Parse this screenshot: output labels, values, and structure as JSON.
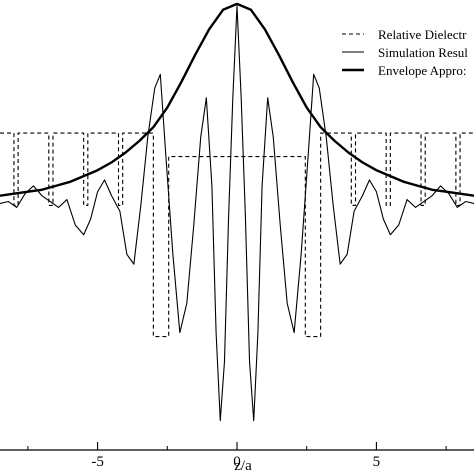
{
  "chart_data": {
    "type": "line",
    "xlabel": "z/a",
    "ylabel": "",
    "title": "",
    "xlim": [
      -8.5,
      8.5
    ],
    "ylim": [
      -1.3,
      1.0
    ],
    "x_ticks": [
      -5,
      0,
      5
    ],
    "x_tick_labels": [
      "-5",
      "0",
      "5"
    ],
    "grid": false,
    "legend_position": "top-right",
    "series": [
      {
        "name": "Relative Dielectr",
        "style": "dashed",
        "color": "#000000",
        "stroke": "thin",
        "x": [
          -8.5,
          -8.0,
          -8.0,
          -7.85,
          -7.85,
          -6.75,
          -6.75,
          -6.6,
          -6.6,
          -5.5,
          -5.5,
          -5.35,
          -5.35,
          -4.25,
          -4.25,
          -4.1,
          -4.1,
          -3.0,
          -3.0,
          -2.45,
          -2.45,
          2.45,
          2.45,
          3.0,
          3.0,
          4.1,
          4.1,
          4.25,
          4.25,
          5.35,
          5.35,
          5.5,
          5.5,
          6.6,
          6.6,
          6.75,
          6.75,
          7.85,
          7.85,
          8.0,
          8.0,
          8.5
        ],
        "y": [
          0.32,
          0.32,
          -0.05,
          -0.05,
          0.32,
          0.32,
          -0.05,
          -0.05,
          0.32,
          0.32,
          -0.05,
          -0.05,
          0.32,
          0.32,
          -0.05,
          -0.05,
          0.32,
          0.32,
          -0.72,
          -0.72,
          0.2,
          0.2,
          -0.72,
          -0.72,
          0.32,
          0.32,
          -0.05,
          -0.05,
          0.32,
          0.32,
          -0.05,
          -0.05,
          0.32,
          0.32,
          -0.05,
          -0.05,
          0.32,
          0.32,
          -0.05,
          -0.05,
          0.32,
          0.32
        ]
      },
      {
        "name": "Simulation Resul",
        "style": "solid",
        "color": "#000000",
        "stroke": "thin",
        "x": [
          -8.5,
          -8.2,
          -7.9,
          -7.6,
          -7.3,
          -7.0,
          -6.7,
          -6.4,
          -6.1,
          -5.8,
          -5.5,
          -5.25,
          -5.0,
          -4.75,
          -4.5,
          -4.2,
          -3.95,
          -3.7,
          -3.45,
          -3.2,
          -2.95,
          -2.75,
          -2.55,
          -2.3,
          -2.05,
          -1.8,
          -1.55,
          -1.3,
          -1.1,
          -0.9,
          -0.75,
          -0.6,
          -0.45,
          -0.3,
          -0.15,
          0.0,
          0.15,
          0.3,
          0.45,
          0.6,
          0.75,
          0.9,
          1.1,
          1.3,
          1.55,
          1.8,
          2.05,
          2.3,
          2.55,
          2.75,
          2.95,
          3.2,
          3.45,
          3.7,
          3.95,
          4.2,
          4.5,
          4.75,
          5.0,
          5.25,
          5.5,
          5.8,
          6.1,
          6.4,
          6.7,
          7.0,
          7.3,
          7.6,
          7.9,
          8.2,
          8.5
        ],
        "y": [
          -0.04,
          -0.03,
          -0.06,
          0.01,
          0.05,
          0.0,
          -0.03,
          -0.06,
          -0.02,
          -0.15,
          -0.2,
          -0.12,
          0.02,
          0.08,
          0.0,
          -0.08,
          -0.3,
          -0.35,
          -0.05,
          0.3,
          0.55,
          0.62,
          0.2,
          -0.3,
          -0.7,
          -0.55,
          -0.15,
          0.3,
          0.5,
          0.05,
          -0.7,
          -1.15,
          -0.85,
          -0.1,
          0.5,
          0.97,
          0.5,
          -0.1,
          -0.85,
          -1.15,
          -0.7,
          0.05,
          0.5,
          0.3,
          -0.15,
          -0.55,
          -0.7,
          -0.3,
          0.2,
          0.62,
          0.55,
          0.3,
          -0.05,
          -0.35,
          -0.3,
          -0.08,
          0.0,
          0.08,
          0.02,
          -0.12,
          -0.2,
          -0.15,
          -0.02,
          -0.06,
          -0.03,
          0.0,
          0.05,
          0.01,
          -0.06,
          -0.03,
          -0.04
        ]
      },
      {
        "name": "Envelope Appro:",
        "style": "solid",
        "color": "#000000",
        "stroke": "thick",
        "x": [
          -8.5,
          -8.0,
          -7.5,
          -7.0,
          -6.5,
          -6.0,
          -5.5,
          -5.0,
          -4.5,
          -4.0,
          -3.5,
          -3.0,
          -2.5,
          -2.0,
          -1.5,
          -1.0,
          -0.5,
          0.0,
          0.5,
          1.0,
          1.5,
          2.0,
          2.5,
          3.0,
          3.5,
          4.0,
          4.5,
          5.0,
          5.5,
          6.0,
          6.5,
          7.0,
          7.5,
          8.0,
          8.5
        ],
        "y": [
          0.0,
          0.01,
          0.02,
          0.03,
          0.05,
          0.07,
          0.1,
          0.13,
          0.17,
          0.22,
          0.28,
          0.35,
          0.45,
          0.58,
          0.72,
          0.85,
          0.95,
          0.98,
          0.95,
          0.85,
          0.72,
          0.58,
          0.45,
          0.35,
          0.28,
          0.22,
          0.17,
          0.13,
          0.1,
          0.07,
          0.05,
          0.03,
          0.02,
          0.01,
          0.0
        ]
      }
    ]
  }
}
